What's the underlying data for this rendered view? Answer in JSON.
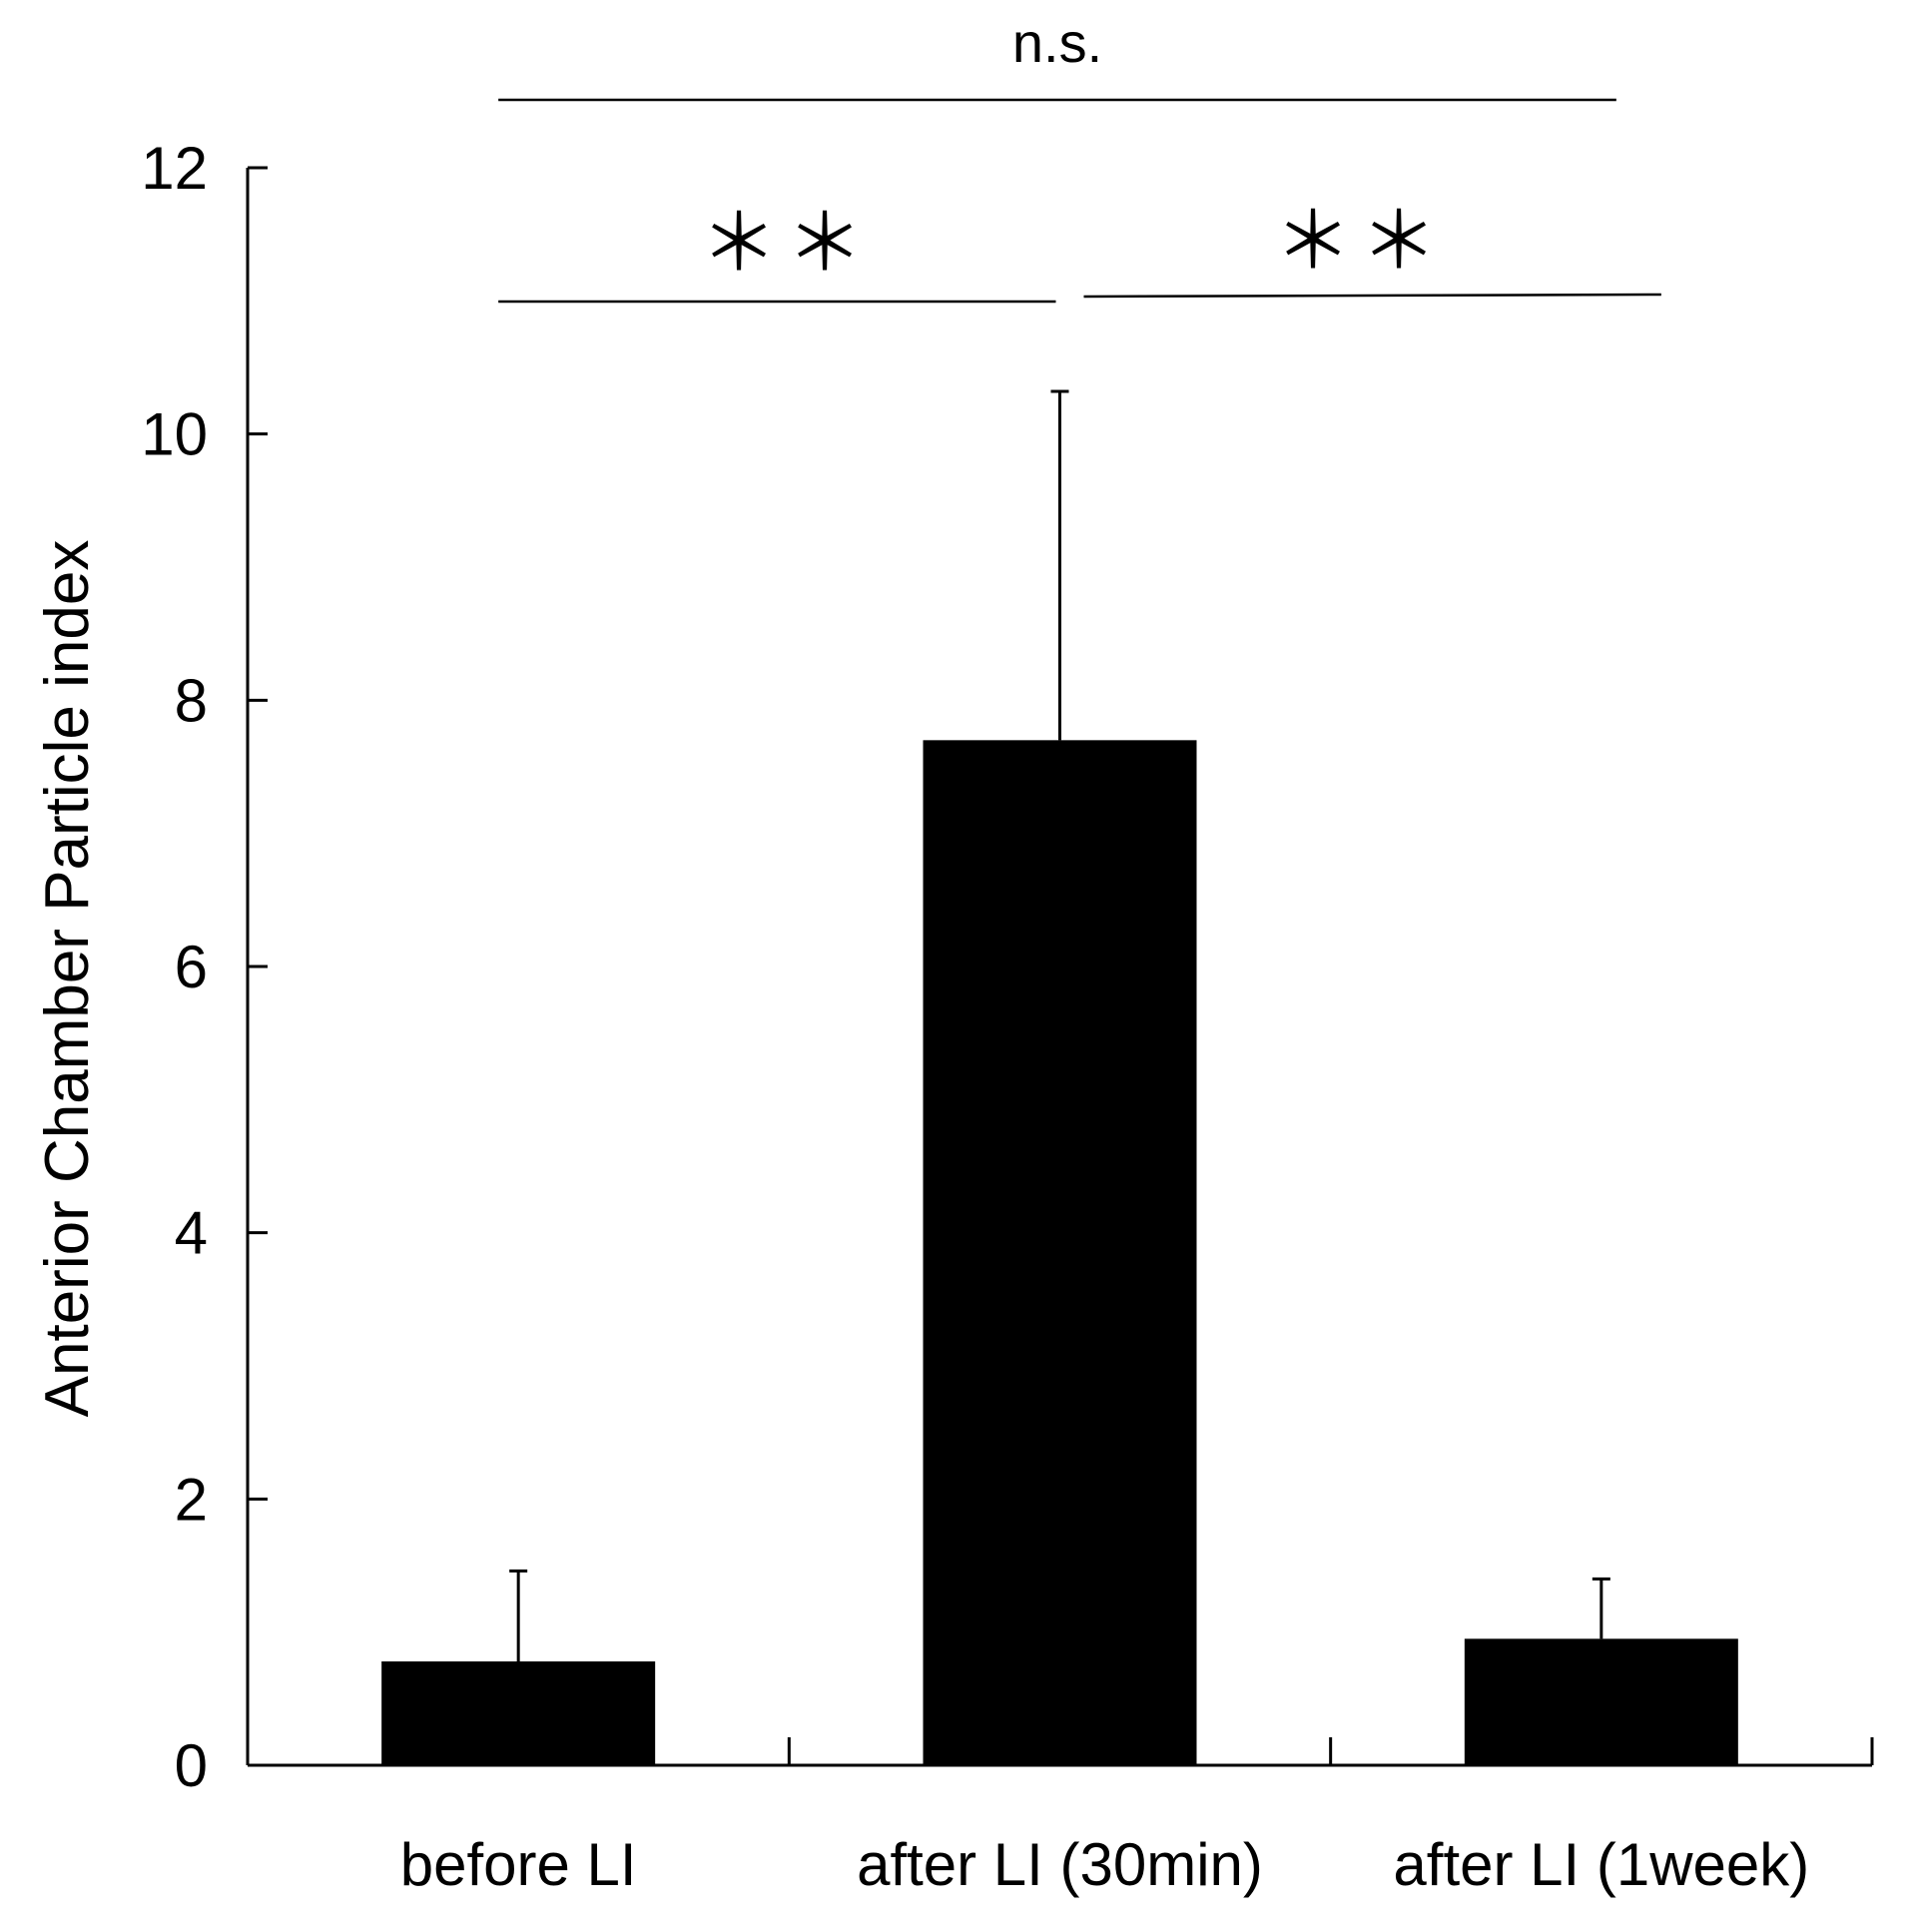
{
  "chart_data": {
    "type": "bar",
    "ylabel": "Anterior Chamber Particle index",
    "xlabel": "",
    "ylim": [
      0,
      12
    ],
    "yticks": [
      0,
      2,
      4,
      6,
      8,
      10,
      12
    ],
    "categories": [
      "before LI",
      "after LI (30min)",
      "after LI (1week)"
    ],
    "values": [
      0.78,
      7.7,
      0.95
    ],
    "errors": [
      0.68,
      2.62,
      0.45
    ],
    "bar_color": "#000000",
    "significance": [
      {
        "from": 0,
        "to": 1,
        "label": "＊＊"
      },
      {
        "from": 1,
        "to": 2,
        "label": "＊＊"
      },
      {
        "from": 0,
        "to": 2,
        "label": "n.s."
      }
    ]
  }
}
